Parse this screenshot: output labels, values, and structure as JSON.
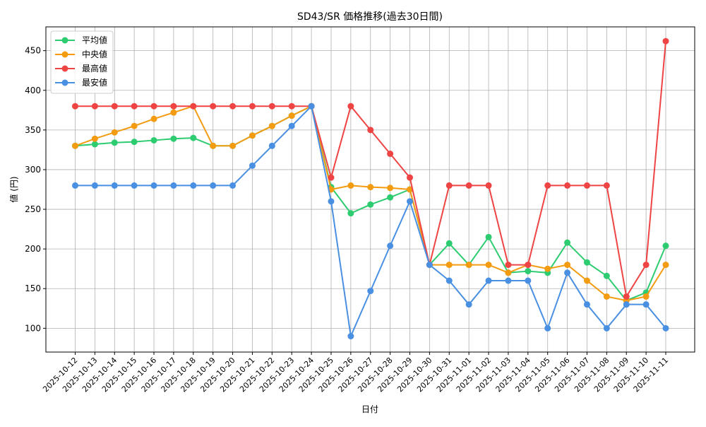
{
  "chart_data": {
    "type": "line",
    "title": "SD43/SR 価格推移(過去30日間)",
    "xlabel": "日付",
    "ylabel": "値 (円)",
    "categories": [
      "2025-10-12",
      "2025-10-13",
      "2025-10-14",
      "2025-10-15",
      "2025-10-16",
      "2025-10-17",
      "2025-10-18",
      "2025-10-19",
      "2025-10-20",
      "2025-10-21",
      "2025-10-22",
      "2025-10-23",
      "2025-10-24",
      "2025-10-25",
      "2025-10-26",
      "2025-10-27",
      "2025-10-28",
      "2025-10-29",
      "2025-10-30",
      "2025-10-31",
      "2025-11-01",
      "2025-11-02",
      "2025-11-03",
      "2025-11-04",
      "2025-11-05",
      "2025-11-06",
      "2025-11-07",
      "2025-11-08",
      "2025-11-09",
      "2025-11-10",
      "2025-11-11"
    ],
    "ylim": [
      70,
      480
    ],
    "yticks": [
      100,
      150,
      200,
      250,
      300,
      350,
      400,
      450
    ],
    "grid": true,
    "legend_position": "top-left",
    "series": [
      {
        "name": "平均値",
        "color": "#2ecc71",
        "values": [
          330,
          332,
          334,
          335,
          337,
          339,
          340,
          330,
          330,
          343,
          355,
          368,
          380,
          278,
          245,
          256,
          265,
          275,
          180,
          207,
          180,
          215,
          170,
          172,
          170,
          208,
          183,
          166,
          135,
          145,
          204
        ]
      },
      {
        "name": "中央値",
        "color": "#f39c12",
        "values": [
          330,
          339,
          347,
          355,
          364,
          372,
          380,
          330,
          330,
          343,
          355,
          368,
          380,
          275,
          280,
          278,
          277,
          275,
          180,
          180,
          180,
          180,
          170,
          180,
          175,
          180,
          160,
          140,
          135,
          140,
          180
        ]
      },
      {
        "name": "最高値",
        "color": "#ef4444",
        "values": [
          380,
          380,
          380,
          380,
          380,
          380,
          380,
          380,
          380,
          380,
          380,
          380,
          380,
          290,
          380,
          350,
          320,
          290,
          180,
          280,
          280,
          280,
          180,
          180,
          280,
          280,
          280,
          280,
          140,
          180,
          462
        ]
      },
      {
        "name": "最安値",
        "color": "#4a90e2",
        "values": [
          280,
          280,
          280,
          280,
          280,
          280,
          280,
          280,
          280,
          305,
          330,
          355,
          380,
          260,
          90,
          147,
          204,
          260,
          180,
          160,
          130,
          160,
          160,
          160,
          100,
          170,
          130,
          100,
          130,
          130,
          100
        ]
      }
    ]
  }
}
